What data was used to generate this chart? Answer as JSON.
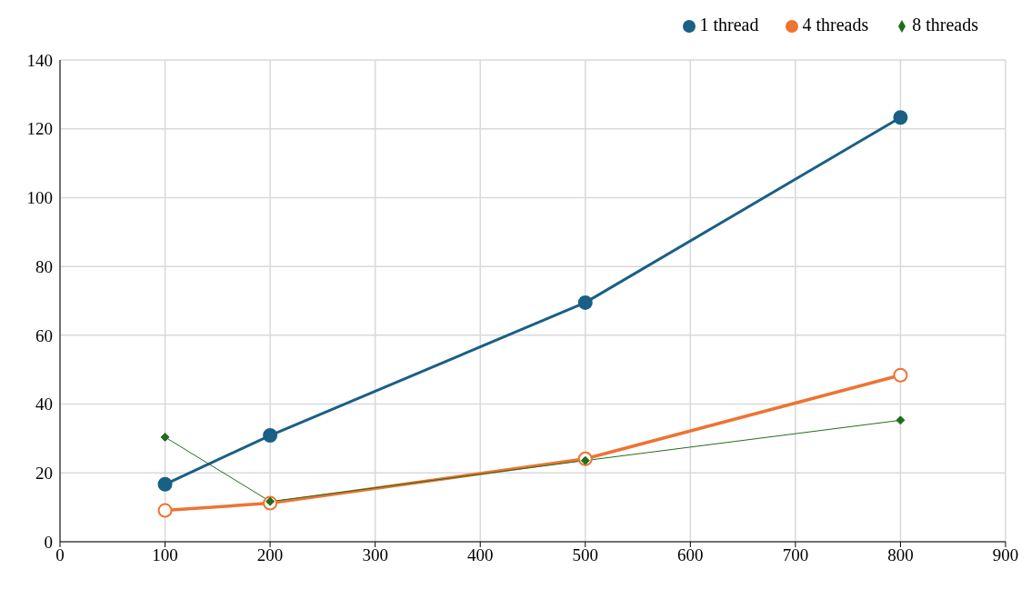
{
  "chart_data": {
    "type": "line",
    "x": [
      100,
      200,
      500,
      800
    ],
    "series": [
      {
        "name": "1 thread",
        "color": "#1a5f86",
        "marker": "circle",
        "values": [
          16.7,
          30.9,
          69.5,
          123.3
        ]
      },
      {
        "name": "4 threads",
        "color": "#ed7433",
        "marker": "circle",
        "values": [
          9.1,
          11.2,
          24.1,
          48.4
        ]
      },
      {
        "name": "8 threads",
        "color": "#1e6e1e",
        "marker": "diamond",
        "values": [
          30.4,
          11.7,
          23.6,
          35.3
        ]
      }
    ],
    "xlim": [
      0,
      900
    ],
    "xticks": [
      0,
      100,
      200,
      300,
      400,
      500,
      600,
      700,
      800,
      900
    ],
    "ylim": [
      0,
      140
    ],
    "yticks": [
      0,
      20,
      40,
      60,
      80,
      100,
      120,
      140
    ],
    "grid": true,
    "legend": "top right",
    "line_style": "solid"
  }
}
